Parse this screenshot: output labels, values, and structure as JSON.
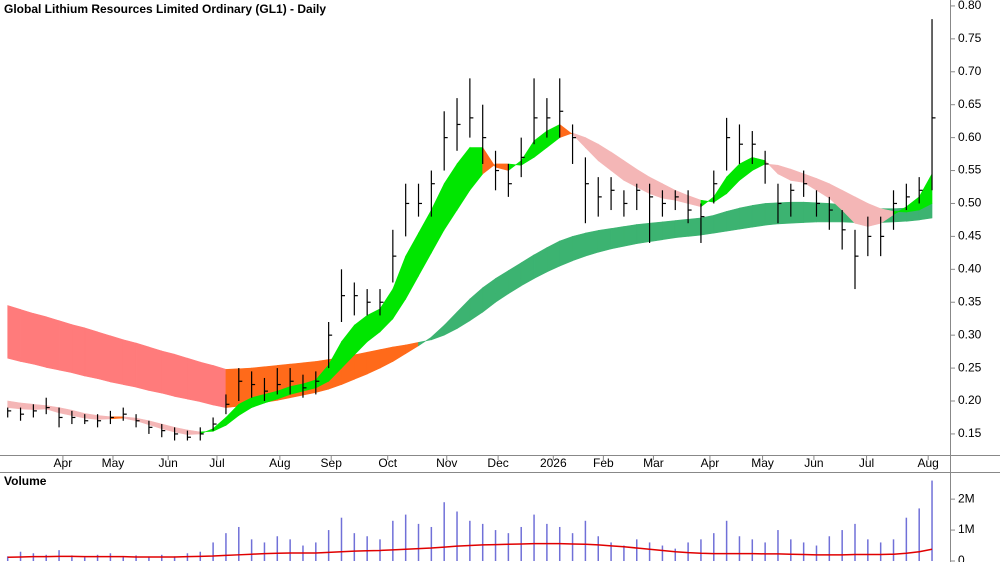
{
  "chart_data": [
    {
      "type": "ohlc",
      "title": "Global Lithium Resources Limited Ordinary (GL1) - Daily",
      "color": "#000000",
      "xlim": [
        -0.6,
        73.4
      ],
      "xticks": [
        {
          "value": 4.3,
          "label": "Apr"
        },
        {
          "value": 8.2,
          "label": "May"
        },
        {
          "value": 12.5,
          "label": "Jun"
        },
        {
          "value": 16.3,
          "label": "Jul"
        },
        {
          "value": 21.2,
          "label": "Aug"
        },
        {
          "value": 25.2,
          "label": "Sep"
        },
        {
          "value": 29.6,
          "label": "Oct"
        },
        {
          "value": 34.2,
          "label": "Nov"
        },
        {
          "value": 38.2,
          "label": "Dec"
        },
        {
          "value": 42.5,
          "label": "2026"
        },
        {
          "value": 46.4,
          "label": "Feb"
        },
        {
          "value": 50.3,
          "label": "Mar"
        },
        {
          "value": 54.7,
          "label": "Apr"
        },
        {
          "value": 58.8,
          "label": "May"
        },
        {
          "value": 62.8,
          "label": "Jun"
        },
        {
          "value": 66.9,
          "label": "Jul"
        },
        {
          "value": 71.7,
          "label": "Aug"
        }
      ],
      "ylim": [
        0.118,
        0.809
      ],
      "yticks": [
        0.15,
        {
          "value": 0.2,
          "label": "0.20"
        },
        0.25,
        {
          "value": 0.3,
          "label": "0.30"
        },
        0.35,
        {
          "value": 0.4,
          "label": "0.40"
        },
        0.45,
        {
          "value": 0.5,
          "label": "0.50"
        },
        0.55,
        {
          "value": 0.6,
          "label": "0.60"
        },
        0.65,
        {
          "value": 0.7,
          "label": "0.70"
        },
        0.75,
        {
          "value": 0.8,
          "label": "0.80"
        }
      ],
      "high": [
        0.19,
        0.19,
        0.195,
        0.205,
        0.19,
        0.185,
        0.18,
        0.18,
        0.185,
        0.19,
        0.18,
        0.17,
        0.165,
        0.16,
        0.155,
        0.16,
        0.175,
        0.21,
        0.25,
        0.245,
        0.235,
        0.25,
        0.25,
        0.24,
        0.245,
        0.32,
        0.4,
        0.38,
        0.37,
        0.37,
        0.46,
        0.53,
        0.53,
        0.55,
        0.64,
        0.66,
        0.69,
        0.65,
        0.58,
        0.56,
        0.6,
        0.69,
        0.66,
        0.69,
        0.62,
        0.57,
        0.54,
        0.54,
        0.52,
        0.53,
        0.53,
        0.52,
        0.52,
        0.52,
        0.5,
        0.55,
        0.63,
        0.62,
        0.61,
        0.58,
        0.53,
        0.53,
        0.55,
        0.52,
        0.51,
        0.49,
        0.46,
        0.48,
        0.48,
        0.52,
        0.53,
        0.54,
        0.78
      ],
      "low": [
        0.175,
        0.17,
        0.175,
        0.18,
        0.16,
        0.165,
        0.165,
        0.16,
        0.165,
        0.17,
        0.16,
        0.15,
        0.145,
        0.14,
        0.14,
        0.14,
        0.155,
        0.18,
        0.2,
        0.205,
        0.2,
        0.21,
        0.21,
        0.205,
        0.21,
        0.25,
        0.32,
        0.33,
        0.33,
        0.33,
        0.38,
        0.45,
        0.48,
        0.48,
        0.55,
        0.58,
        0.6,
        0.56,
        0.52,
        0.51,
        0.54,
        0.59,
        0.6,
        0.6,
        0.56,
        0.47,
        0.48,
        0.49,
        0.48,
        0.49,
        0.44,
        0.48,
        0.49,
        0.47,
        0.44,
        0.5,
        0.55,
        0.56,
        0.56,
        0.53,
        0.47,
        0.48,
        0.51,
        0.48,
        0.46,
        0.43,
        0.37,
        0.42,
        0.42,
        0.46,
        0.49,
        0.5,
        0.52
      ],
      "close": [
        0.185,
        0.18,
        0.185,
        0.19,
        0.175,
        0.175,
        0.17,
        0.17,
        0.175,
        0.18,
        0.17,
        0.16,
        0.155,
        0.15,
        0.145,
        0.15,
        0.165,
        0.195,
        0.23,
        0.225,
        0.215,
        0.225,
        0.23,
        0.22,
        0.23,
        0.3,
        0.36,
        0.36,
        0.35,
        0.35,
        0.42,
        0.5,
        0.5,
        0.53,
        0.6,
        0.62,
        0.63,
        0.6,
        0.55,
        0.53,
        0.57,
        0.63,
        0.63,
        0.64,
        0.6,
        0.53,
        0.51,
        0.52,
        0.5,
        0.52,
        0.51,
        0.5,
        0.51,
        0.49,
        0.48,
        0.53,
        0.6,
        0.59,
        0.59,
        0.56,
        0.5,
        0.52,
        0.53,
        0.5,
        0.49,
        0.46,
        0.42,
        0.45,
        0.45,
        0.5,
        0.51,
        0.52,
        0.63
      ],
      "ribbons": [
        {
          "color_up": "#3cb371",
          "color_down": "#ff7b7b",
          "color_mixed": "#ff6a1a",
          "fast": [
            0.265,
            0.26,
            0.256,
            0.251,
            0.247,
            0.243,
            0.238,
            0.234,
            0.229,
            0.225,
            0.221,
            0.216,
            0.212,
            0.207,
            0.203,
            0.199,
            0.194,
            0.19,
            0.192,
            0.195,
            0.198,
            0.201,
            0.205,
            0.209,
            0.213,
            0.218,
            0.225,
            0.233,
            0.241,
            0.25,
            0.26,
            0.272,
            0.284,
            0.297,
            0.315,
            0.335,
            0.355,
            0.372,
            0.386,
            0.398,
            0.41,
            0.422,
            0.433,
            0.443,
            0.45,
            0.455,
            0.459,
            0.462,
            0.465,
            0.468,
            0.47,
            0.472,
            0.474,
            0.476,
            0.478,
            0.482,
            0.488,
            0.493,
            0.497,
            0.5,
            0.501,
            0.502,
            0.502,
            0.501,
            0.5,
            0.498,
            0.495,
            0.493,
            0.492,
            0.492,
            0.493,
            0.495,
            0.5
          ],
          "slow": [
            0.345,
            0.339,
            0.333,
            0.328,
            0.322,
            0.316,
            0.311,
            0.305,
            0.299,
            0.293,
            0.288,
            0.282,
            0.276,
            0.271,
            0.265,
            0.259,
            0.254,
            0.248,
            0.249,
            0.25,
            0.252,
            0.254,
            0.256,
            0.258,
            0.26,
            0.263,
            0.266,
            0.27,
            0.274,
            0.278,
            0.282,
            0.285,
            0.289,
            0.293,
            0.3,
            0.31,
            0.322,
            0.335,
            0.35,
            0.363,
            0.375,
            0.386,
            0.396,
            0.405,
            0.413,
            0.42,
            0.426,
            0.431,
            0.435,
            0.439,
            0.442,
            0.445,
            0.448,
            0.45,
            0.452,
            0.455,
            0.458,
            0.461,
            0.464,
            0.467,
            0.469,
            0.47,
            0.471,
            0.472,
            0.472,
            0.472,
            0.471,
            0.471,
            0.471,
            0.472,
            0.473,
            0.475,
            0.478
          ]
        },
        {
          "color_up": "#00e600",
          "color_down": "#f4b6b6",
          "color_mixed": "#ff6a1a",
          "fast": [
            0.19,
            0.188,
            0.187,
            0.188,
            0.182,
            0.178,
            0.174,
            0.172,
            0.173,
            0.174,
            0.17,
            0.164,
            0.158,
            0.153,
            0.149,
            0.15,
            0.158,
            0.175,
            0.195,
            0.205,
            0.21,
            0.215,
            0.222,
            0.226,
            0.232,
            0.255,
            0.29,
            0.315,
            0.33,
            0.34,
            0.37,
            0.42,
            0.455,
            0.49,
            0.53,
            0.56,
            0.585,
            0.585,
            0.555,
            0.55,
            0.565,
            0.595,
            0.61,
            0.62,
            0.605,
            0.585,
            0.565,
            0.55,
            0.535,
            0.525,
            0.515,
            0.508,
            0.505,
            0.5,
            0.495,
            0.51,
            0.54,
            0.56,
            0.57,
            0.565,
            0.545,
            0.535,
            0.532,
            0.52,
            0.508,
            0.49,
            0.47,
            0.465,
            0.47,
            0.483,
            0.495,
            0.51,
            0.545
          ],
          "slow": [
            0.2,
            0.197,
            0.195,
            0.193,
            0.19,
            0.186,
            0.181,
            0.178,
            0.176,
            0.176,
            0.174,
            0.17,
            0.165,
            0.16,
            0.156,
            0.153,
            0.154,
            0.163,
            0.178,
            0.19,
            0.197,
            0.203,
            0.21,
            0.215,
            0.22,
            0.23,
            0.25,
            0.27,
            0.29,
            0.305,
            0.325,
            0.355,
            0.39,
            0.425,
            0.46,
            0.49,
            0.52,
            0.545,
            0.56,
            0.56,
            0.558,
            0.57,
            0.585,
            0.6,
            0.607,
            0.6,
            0.59,
            0.578,
            0.565,
            0.552,
            0.54,
            0.53,
            0.52,
            0.512,
            0.505,
            0.502,
            0.515,
            0.535,
            0.55,
            0.56,
            0.558,
            0.552,
            0.545,
            0.538,
            0.53,
            0.52,
            0.51,
            0.5,
            0.492,
            0.488,
            0.487,
            0.49,
            0.5
          ]
        }
      ]
    },
    {
      "type": "volume",
      "title": "Volume",
      "color": "#7070d8",
      "title_color": "#6060c0",
      "xlim": [
        -0.6,
        73.4
      ],
      "ylim": [
        0,
        2780000
      ],
      "yticks": [
        0,
        {
          "value": 1000000,
          "label": "1M"
        },
        {
          "value": 2000000,
          "label": "2M"
        }
      ],
      "values": [
        150000,
        300000,
        250000,
        200000,
        350000,
        180000,
        120000,
        200000,
        250000,
        150000,
        180000,
        120000,
        200000,
        150000,
        250000,
        300000,
        600000,
        900000,
        1100000,
        700000,
        600000,
        800000,
        700000,
        500000,
        600000,
        1000000,
        1400000,
        900000,
        800000,
        700000,
        1300000,
        1500000,
        1200000,
        1100000,
        1900000,
        1600000,
        1300000,
        1200000,
        1000000,
        900000,
        1100000,
        1500000,
        1200000,
        1100000,
        900000,
        1300000,
        800000,
        600000,
        500000,
        700000,
        600000,
        500000,
        400000,
        600000,
        700000,
        900000,
        1300000,
        800000,
        700000,
        600000,
        1000000,
        700000,
        600000,
        500000,
        800000,
        1000000,
        1200000,
        700000,
        600000,
        700000,
        1400000,
        1700000,
        2600000
      ],
      "average": {
        "color": "#e00000",
        "values": [
          120000,
          130000,
          140000,
          140000,
          150000,
          150000,
          140000,
          140000,
          140000,
          140000,
          130000,
          130000,
          130000,
          130000,
          140000,
          150000,
          160000,
          180000,
          200000,
          220000,
          240000,
          250000,
          260000,
          260000,
          260000,
          280000,
          300000,
          320000,
          330000,
          340000,
          360000,
          380000,
          400000,
          420000,
          450000,
          480000,
          500000,
          520000,
          530000,
          540000,
          550000,
          560000,
          560000,
          560000,
          550000,
          540000,
          520000,
          490000,
          460000,
          420000,
          380000,
          340000,
          300000,
          270000,
          250000,
          240000,
          240000,
          240000,
          240000,
          230000,
          230000,
          220000,
          210000,
          200000,
          200000,
          200000,
          210000,
          210000,
          210000,
          220000,
          250000,
          300000,
          380000
        ]
      }
    }
  ]
}
